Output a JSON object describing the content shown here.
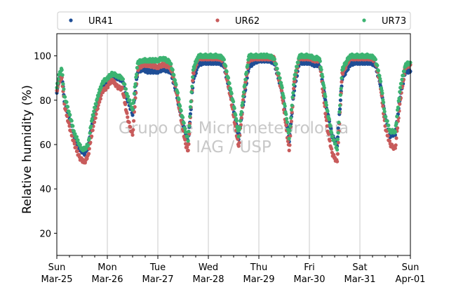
{
  "chart_data": {
    "type": "scatter",
    "title": "",
    "xlabel": "",
    "ylabel": "Relative humidity (%)",
    "ylim": [
      10,
      110
    ],
    "y_ticks": [
      20,
      40,
      60,
      80,
      100
    ],
    "x_ticks": [
      {
        "day": "Sun",
        "date": "Mar-25"
      },
      {
        "day": "Mon",
        "date": "Mar-26"
      },
      {
        "day": "Tue",
        "date": "Mar-27"
      },
      {
        "day": "Wed",
        "date": "Mar-28"
      },
      {
        "day": "Thu",
        "date": "Mar-29"
      },
      {
        "day": "Fri",
        "date": "Mar-30"
      },
      {
        "day": "Sat",
        "date": "Mar-31"
      },
      {
        "day": "Sun",
        "date": "Apr-01"
      }
    ],
    "xlim_days": [
      0,
      7
    ],
    "grid": "vertical",
    "legend": "top, outside plot",
    "watermark": [
      "Grupo de Micrometeorologia",
      "IAG / USP"
    ],
    "series": [
      {
        "name": "UR41",
        "color": "#1f4e96",
        "points": [
          [
            0,
            84
          ],
          [
            0.05,
            90
          ],
          [
            0.1,
            91
          ],
          [
            0.15,
            80
          ],
          [
            0.25,
            72
          ],
          [
            0.35,
            63
          ],
          [
            0.45,
            58
          ],
          [
            0.5,
            57
          ],
          [
            0.55,
            56
          ],
          [
            0.62,
            59
          ],
          [
            0.7,
            70
          ],
          [
            0.8,
            78
          ],
          [
            0.9,
            86
          ],
          [
            1.0,
            88
          ],
          [
            1.05,
            90
          ],
          [
            1.1,
            91
          ],
          [
            1.2,
            90
          ],
          [
            1.3,
            89
          ],
          [
            1.4,
            80
          ],
          [
            1.5,
            74
          ],
          [
            1.6,
            93
          ],
          [
            1.7,
            94
          ],
          [
            1.8,
            93
          ],
          [
            2.0,
            93
          ],
          [
            2.1,
            94
          ],
          [
            2.25,
            93
          ],
          [
            2.35,
            85
          ],
          [
            2.45,
            74
          ],
          [
            2.55,
            65
          ],
          [
            2.6,
            61
          ],
          [
            2.7,
            89
          ],
          [
            2.8,
            96
          ],
          [
            2.9,
            97
          ],
          [
            3.0,
            97
          ],
          [
            3.1,
            97
          ],
          [
            3.2,
            97
          ],
          [
            3.3,
            96
          ],
          [
            3.45,
            82
          ],
          [
            3.55,
            70
          ],
          [
            3.6,
            63
          ],
          [
            3.7,
            80
          ],
          [
            3.8,
            95
          ],
          [
            3.9,
            97
          ],
          [
            4.0,
            98
          ],
          [
            4.2,
            98
          ],
          [
            4.3,
            97
          ],
          [
            4.45,
            85
          ],
          [
            4.55,
            70
          ],
          [
            4.6,
            62
          ],
          [
            4.7,
            85
          ],
          [
            4.8,
            97
          ],
          [
            4.9,
            97
          ],
          [
            5.0,
            97
          ],
          [
            5.1,
            96
          ],
          [
            5.2,
            96
          ],
          [
            5.25,
            90
          ],
          [
            5.35,
            75
          ],
          [
            5.45,
            64
          ],
          [
            5.55,
            60
          ],
          [
            5.65,
            90
          ],
          [
            5.8,
            96
          ],
          [
            5.9,
            97
          ],
          [
            6.0,
            97
          ],
          [
            6.1,
            97
          ],
          [
            6.2,
            97
          ],
          [
            6.3,
            96
          ],
          [
            6.4,
            88
          ],
          [
            6.5,
            72
          ],
          [
            6.6,
            64
          ],
          [
            6.7,
            65
          ],
          [
            6.8,
            82
          ],
          [
            6.9,
            93
          ],
          [
            7.0,
            93
          ]
        ]
      },
      {
        "name": "UR62",
        "color": "#c85b5b",
        "points": [
          [
            0,
            84
          ],
          [
            0.05,
            89
          ],
          [
            0.1,
            90
          ],
          [
            0.15,
            78
          ],
          [
            0.25,
            68
          ],
          [
            0.35,
            60
          ],
          [
            0.45,
            54
          ],
          [
            0.5,
            53
          ],
          [
            0.55,
            52
          ],
          [
            0.62,
            55
          ],
          [
            0.7,
            66
          ],
          [
            0.8,
            76
          ],
          [
            0.9,
            84
          ],
          [
            1.0,
            86
          ],
          [
            1.05,
            88
          ],
          [
            1.1,
            89
          ],
          [
            1.2,
            86
          ],
          [
            1.3,
            85
          ],
          [
            1.4,
            72
          ],
          [
            1.5,
            64
          ],
          [
            1.6,
            94
          ],
          [
            1.7,
            96
          ],
          [
            1.8,
            96
          ],
          [
            2.0,
            95
          ],
          [
            2.1,
            96
          ],
          [
            2.25,
            95
          ],
          [
            2.35,
            86
          ],
          [
            2.45,
            73
          ],
          [
            2.55,
            60
          ],
          [
            2.6,
            57
          ],
          [
            2.7,
            92
          ],
          [
            2.8,
            99
          ],
          [
            2.9,
            99
          ],
          [
            3.0,
            99
          ],
          [
            3.1,
            99
          ],
          [
            3.2,
            99
          ],
          [
            3.3,
            98
          ],
          [
            3.45,
            80
          ],
          [
            3.55,
            66
          ],
          [
            3.6,
            59
          ],
          [
            3.7,
            82
          ],
          [
            3.8,
            98
          ],
          [
            3.9,
            99
          ],
          [
            4.0,
            99
          ],
          [
            4.2,
            99
          ],
          [
            4.3,
            99
          ],
          [
            4.45,
            84
          ],
          [
            4.55,
            66
          ],
          [
            4.6,
            57
          ],
          [
            4.7,
            88
          ],
          [
            4.8,
            99
          ],
          [
            4.9,
            99
          ],
          [
            5.0,
            99
          ],
          [
            5.1,
            98
          ],
          [
            5.2,
            98
          ],
          [
            5.25,
            88
          ],
          [
            5.35,
            68
          ],
          [
            5.45,
            56
          ],
          [
            5.55,
            52
          ],
          [
            5.65,
            92
          ],
          [
            5.8,
            99
          ],
          [
            5.9,
            99
          ],
          [
            6.0,
            99
          ],
          [
            6.1,
            99
          ],
          [
            6.2,
            99
          ],
          [
            6.3,
            98
          ],
          [
            6.4,
            88
          ],
          [
            6.5,
            68
          ],
          [
            6.6,
            60
          ],
          [
            6.7,
            58
          ],
          [
            6.8,
            80
          ],
          [
            6.9,
            95
          ],
          [
            7.0,
            96
          ]
        ]
      },
      {
        "name": "UR73",
        "color": "#3cb371",
        "points": [
          [
            0,
            86
          ],
          [
            0.05,
            92
          ],
          [
            0.1,
            94
          ],
          [
            0.15,
            82
          ],
          [
            0.25,
            74
          ],
          [
            0.35,
            65
          ],
          [
            0.45,
            60
          ],
          [
            0.5,
            58
          ],
          [
            0.55,
            58
          ],
          [
            0.62,
            60
          ],
          [
            0.7,
            72
          ],
          [
            0.8,
            81
          ],
          [
            0.9,
            88
          ],
          [
            1.0,
            90
          ],
          [
            1.05,
            91
          ],
          [
            1.1,
            92
          ],
          [
            1.2,
            91
          ],
          [
            1.3,
            90
          ],
          [
            1.4,
            82
          ],
          [
            1.5,
            76
          ],
          [
            1.6,
            97
          ],
          [
            1.7,
            98
          ],
          [
            1.8,
            98
          ],
          [
            2.0,
            98
          ],
          [
            2.1,
            99
          ],
          [
            2.25,
            97
          ],
          [
            2.35,
            88
          ],
          [
            2.45,
            76
          ],
          [
            2.55,
            66
          ],
          [
            2.6,
            62
          ],
          [
            2.7,
            94
          ],
          [
            2.8,
            100
          ],
          [
            2.9,
            100
          ],
          [
            3.0,
            100
          ],
          [
            3.1,
            100
          ],
          [
            3.2,
            100
          ],
          [
            3.3,
            99
          ],
          [
            3.45,
            84
          ],
          [
            3.55,
            72
          ],
          [
            3.6,
            64
          ],
          [
            3.7,
            84
          ],
          [
            3.8,
            100
          ],
          [
            3.9,
            100
          ],
          [
            4.0,
            100
          ],
          [
            4.2,
            100
          ],
          [
            4.3,
            99
          ],
          [
            4.45,
            87
          ],
          [
            4.55,
            72
          ],
          [
            4.6,
            63
          ],
          [
            4.7,
            90
          ],
          [
            4.8,
            100
          ],
          [
            4.9,
            100
          ],
          [
            5.0,
            100
          ],
          [
            5.1,
            99
          ],
          [
            5.2,
            99
          ],
          [
            5.25,
            92
          ],
          [
            5.35,
            76
          ],
          [
            5.45,
            64
          ],
          [
            5.55,
            58
          ],
          [
            5.65,
            94
          ],
          [
            5.8,
            100
          ],
          [
            5.9,
            100
          ],
          [
            6.0,
            100
          ],
          [
            6.1,
            100
          ],
          [
            6.2,
            100
          ],
          [
            6.3,
            99
          ],
          [
            6.4,
            90
          ],
          [
            6.5,
            73
          ],
          [
            6.6,
            66
          ],
          [
            6.7,
            66
          ],
          [
            6.8,
            86
          ],
          [
            6.9,
            96
          ],
          [
            7.0,
            97
          ]
        ]
      }
    ]
  }
}
